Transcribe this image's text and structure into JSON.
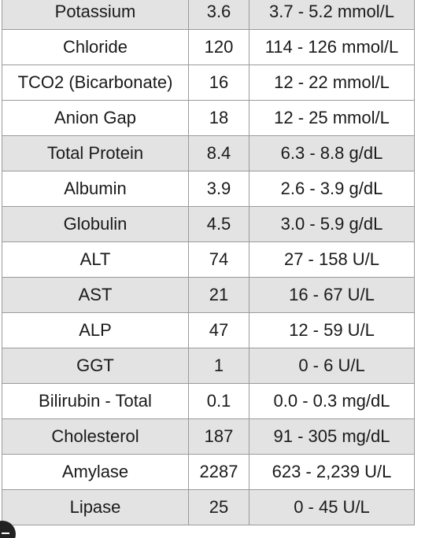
{
  "rows": [
    {
      "test": "Potassium",
      "value": "3.6",
      "reference": "3.7 - 5.2 mmol/L"
    },
    {
      "test": "Chloride",
      "value": "120",
      "reference": "114 - 126 mmol/L"
    },
    {
      "test": "TCO2 (Bicarbonate)",
      "value": "16",
      "reference": "12 - 22 mmol/L"
    },
    {
      "test": "Anion Gap",
      "value": "18",
      "reference": "12 - 25 mmol/L"
    },
    {
      "test": "Total Protein",
      "value": "8.4",
      "reference": "6.3 - 8.8 g/dL"
    },
    {
      "test": "Albumin",
      "value": "3.9",
      "reference": "2.6 - 3.9 g/dL"
    },
    {
      "test": "Globulin",
      "value": "4.5",
      "reference": "3.0 - 5.9 g/dL"
    },
    {
      "test": "ALT",
      "value": "74",
      "reference": "27 - 158 U/L"
    },
    {
      "test": "AST",
      "value": "21",
      "reference": "16 - 67 U/L"
    },
    {
      "test": "ALP",
      "value": "47",
      "reference": "12 - 59 U/L"
    },
    {
      "test": "GGT",
      "value": "1",
      "reference": "0 - 6 U/L"
    },
    {
      "test": "Bilirubin - Total",
      "value": "0.1",
      "reference": "0.0 - 0.3 mg/dL"
    },
    {
      "test": "Cholesterol",
      "value": "187",
      "reference": "91 - 305 mg/dL"
    },
    {
      "test": "Amylase",
      "value": "2287",
      "reference": "623 - 2,239 U/L"
    },
    {
      "test": "Lipase",
      "value": "25",
      "reference": "0 - 45 U/L"
    }
  ],
  "corner_icon": "round-button-icon"
}
